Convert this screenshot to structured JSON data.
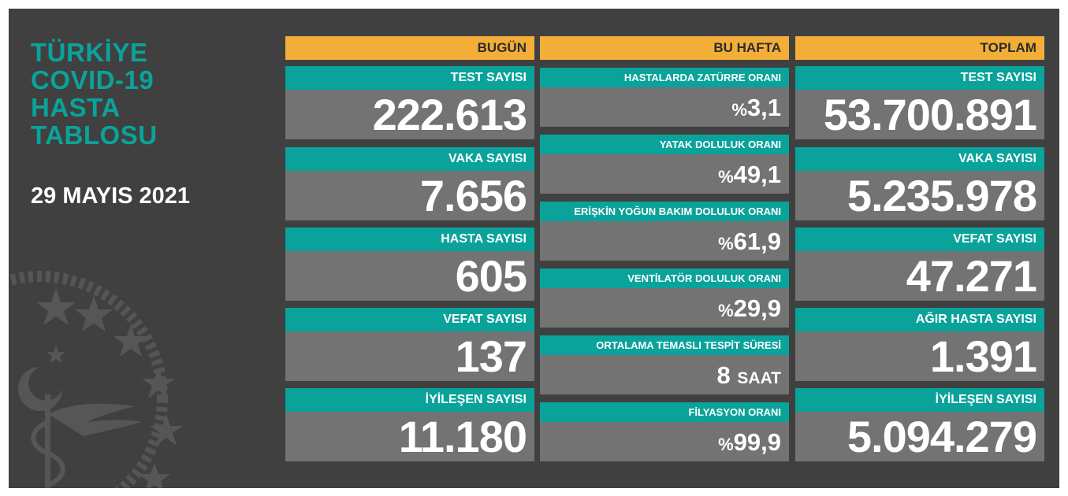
{
  "title": {
    "lines": [
      "TÜRKİYE",
      "COVID-19",
      "HASTA",
      "TABLOSU"
    ],
    "date": "29 MAYIS 2021"
  },
  "today": {
    "header": "BUGÜN",
    "items": [
      {
        "label": "TEST SAYISI",
        "value": "222.613"
      },
      {
        "label": "VAKA SAYISI",
        "value": "7.656"
      },
      {
        "label": "HASTA SAYISI",
        "value": "605"
      },
      {
        "label": "VEFAT SAYISI",
        "value": "137"
      },
      {
        "label": "İYİLEŞEN SAYISI",
        "value": "11.180"
      }
    ]
  },
  "week": {
    "header": "BU HAFTA",
    "items": [
      {
        "label": "HASTALARDA ZATÜRRE ORANI",
        "prefix": "%",
        "value": "3,1"
      },
      {
        "label": "YATAK DOLULUK ORANI",
        "prefix": "%",
        "value": "49,1"
      },
      {
        "label": "ERİŞKİN YOĞUN BAKIM DOLULUK ORANI",
        "prefix": "%",
        "value": "61,9"
      },
      {
        "label": "VENTİLATÖR DOLULUK ORANI",
        "prefix": "%",
        "value": "29,9"
      },
      {
        "label": "ORTALAMA TEMASLI TESPİT SÜRESİ",
        "value": "8",
        "unit": "SAAT"
      },
      {
        "label": "FİLYASYON ORANI",
        "prefix": "%",
        "value": "99,9"
      }
    ]
  },
  "total": {
    "header": "TOPLAM",
    "items": [
      {
        "label": "TEST SAYISI",
        "value": "53.700.891"
      },
      {
        "label": "VAKA SAYISI",
        "value": "5.235.978"
      },
      {
        "label": "VEFAT SAYISI",
        "value": "47.271"
      },
      {
        "label": "AĞIR HASTA SAYISI",
        "value": "1.391"
      },
      {
        "label": "İYİLEŞEN SAYISI",
        "value": "5.094.279"
      }
    ]
  },
  "colors": {
    "panel": "#404040",
    "teal": "#0aa39b",
    "orange": "#f3ae38",
    "value_bg": "#737373"
  },
  "icons": [
    "health-ministry-emblem-icon"
  ]
}
